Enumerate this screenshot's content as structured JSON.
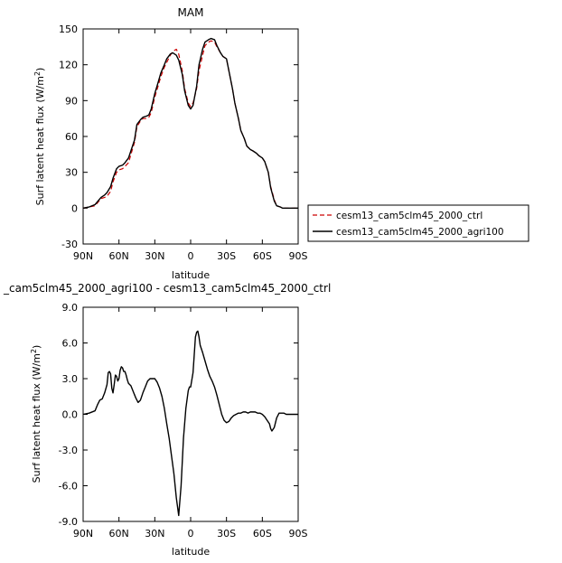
{
  "chart_data": [
    {
      "type": "line",
      "title": "MAM",
      "xlabel": "latitude",
      "ylabel": "Surf latent heat flux (W/m",
      "ylabel_sup": "2",
      "ylabel_close": ")",
      "xlim": [
        90,
        -90
      ],
      "ylim": [
        -30,
        150
      ],
      "xticks": [
        90,
        60,
        30,
        0,
        -30,
        -60,
        -90
      ],
      "xtick_labels": [
        "90N",
        "60N",
        "30N",
        "0",
        "30S",
        "60S",
        "90S"
      ],
      "yticks": [
        -30,
        0,
        30,
        60,
        90,
        120,
        150
      ],
      "ytick_labels": [
        "-30",
        "0",
        "30",
        "60",
        "90",
        "120",
        "150"
      ],
      "legend": {
        "placement": "right"
      },
      "series": [
        {
          "name": "cesm13_cam5clm45_2000_ctrl",
          "color": "#cc0000",
          "dash": true,
          "x": [
            90,
            85,
            80,
            75,
            72,
            70,
            67,
            65,
            62,
            60,
            57,
            55,
            52,
            50,
            47,
            45,
            42,
            40,
            37,
            35,
            33,
            30,
            27,
            25,
            22,
            20,
            17,
            15,
            12,
            10,
            7,
            5,
            2,
            0,
            -2,
            -5,
            -7,
            -10,
            -12,
            -15,
            -17,
            -20,
            -22,
            -25,
            -27,
            -30,
            -32,
            -35,
            -37,
            -40,
            -42,
            -45,
            -47,
            -50,
            -52,
            -55,
            -57,
            -60,
            -62,
            -65,
            -67,
            -70,
            -72,
            -75,
            -77,
            -80,
            -82,
            -85,
            -90
          ],
          "y": [
            0,
            1,
            2,
            8,
            9,
            10,
            14,
            22,
            30,
            32,
            33,
            35,
            38,
            45,
            55,
            68,
            73,
            75,
            75,
            76,
            80,
            93,
            103,
            110,
            118,
            122,
            128,
            131,
            133,
            129,
            115,
            100,
            88,
            85,
            88,
            100,
            115,
            128,
            136,
            139,
            140,
            139,
            135,
            130,
            127,
            125,
            115,
            100,
            88,
            75,
            65,
            58,
            52,
            49,
            48,
            46,
            44,
            42,
            39,
            30,
            18,
            7,
            2,
            1,
            0,
            0,
            0,
            0,
            0
          ]
        },
        {
          "name": "cesm13_cam5clm45_2000_agri100",
          "color": "#000000",
          "dash": false,
          "x": [
            90,
            85,
            80,
            75,
            72,
            70,
            67,
            65,
            62,
            60,
            57,
            55,
            52,
            50,
            47,
            45,
            42,
            40,
            37,
            35,
            33,
            30,
            27,
            25,
            22,
            20,
            17,
            15,
            12,
            10,
            7,
            5,
            2,
            0,
            -2,
            -5,
            -7,
            -10,
            -12,
            -15,
            -17,
            -20,
            -22,
            -25,
            -27,
            -30,
            -32,
            -35,
            -37,
            -40,
            -42,
            -45,
            -47,
            -50,
            -52,
            -55,
            -57,
            -60,
            -62,
            -65,
            -67,
            -70,
            -72,
            -75,
            -77,
            -80,
            -82,
            -85,
            -90
          ],
          "y": [
            0,
            1,
            3,
            9,
            11,
            13,
            18,
            25,
            33,
            35,
            36,
            38,
            42,
            48,
            57,
            70,
            74,
            76,
            77,
            78,
            83,
            96,
            106,
            113,
            120,
            125,
            129,
            130,
            128,
            124,
            112,
            98,
            86,
            83,
            86,
            102,
            120,
            133,
            139,
            141,
            142,
            141,
            136,
            130,
            127,
            125,
            115,
            100,
            88,
            75,
            65,
            58,
            52,
            49,
            48,
            46,
            44,
            42,
            39,
            30,
            17,
            6,
            2,
            1,
            0,
            0,
            0,
            0,
            0
          ]
        }
      ]
    },
    {
      "type": "line",
      "title": "_cam5clm45_2000_agri100 - cesm13_cam5clm45_2000_ctrl",
      "xlabel": "latitude",
      "ylabel": "Surf latent heat flux (W/m",
      "ylabel_sup": "2",
      "ylabel_close": ")",
      "xlim": [
        90,
        -90
      ],
      "ylim": [
        -9,
        9
      ],
      "xticks": [
        90,
        60,
        30,
        0,
        -30,
        -60,
        -90
      ],
      "xtick_labels": [
        "90N",
        "60N",
        "30N",
        "0",
        "30S",
        "60S",
        "90S"
      ],
      "yticks": [
        -9,
        -6,
        -3,
        0,
        3,
        6,
        9
      ],
      "ytick_labels": [
        "-9.0",
        "-6.0",
        "-3.0",
        "0.0",
        "3.0",
        "6.0",
        "9.0"
      ],
      "series": [
        {
          "name": "",
          "color": "#000000",
          "dash": false,
          "x": [
            90,
            85,
            80,
            78,
            76,
            74,
            72,
            70,
            69,
            68,
            67,
            66,
            65,
            64,
            63,
            62,
            61,
            60,
            59,
            58,
            57,
            56,
            55,
            54,
            53,
            52,
            50,
            48,
            46,
            44,
            42,
            40,
            38,
            36,
            34,
            32,
            30,
            28,
            26,
            24,
            22,
            20,
            18,
            16,
            14,
            12,
            10,
            8,
            6,
            4,
            2,
            1,
            0,
            -2,
            -3,
            -4,
            -5,
            -6,
            -7,
            -8,
            -10,
            -12,
            -14,
            -16,
            -18,
            -20,
            -22,
            -24,
            -26,
            -28,
            -30,
            -32,
            -34,
            -36,
            -38,
            -40,
            -42,
            -44,
            -46,
            -48,
            -50,
            -52,
            -54,
            -56,
            -58,
            -60,
            -62,
            -64,
            -66,
            -67,
            -68,
            -70,
            -72,
            -74,
            -76,
            -78,
            -80,
            -85,
            -90
          ],
          "y": [
            0,
            0.1,
            0.3,
            0.8,
            1.2,
            1.3,
            1.8,
            2.5,
            3.5,
            3.6,
            3.4,
            2.2,
            1.8,
            2.5,
            3.3,
            3.2,
            2.8,
            3.0,
            3.7,
            4.0,
            3.9,
            3.6,
            3.6,
            3.3,
            2.9,
            2.6,
            2.4,
            1.9,
            1.4,
            1.0,
            1.2,
            1.8,
            2.3,
            2.8,
            3.0,
            3.0,
            3.0,
            2.7,
            2.2,
            1.5,
            0.5,
            -0.8,
            -2.0,
            -3.5,
            -5.0,
            -7.0,
            -8.5,
            -6.0,
            -2.0,
            0.5,
            2.0,
            2.3,
            2.3,
            3.5,
            5.0,
            6.5,
            6.9,
            7.0,
            6.5,
            5.8,
            5.2,
            4.5,
            3.8,
            3.2,
            2.8,
            2.3,
            1.6,
            0.8,
            0.0,
            -0.5,
            -0.7,
            -0.6,
            -0.3,
            -0.1,
            0.0,
            0.1,
            0.1,
            0.2,
            0.2,
            0.1,
            0.2,
            0.2,
            0.2,
            0.1,
            0.1,
            0.0,
            -0.2,
            -0.5,
            -0.8,
            -1.2,
            -1.4,
            -1.1,
            -0.3,
            0.1,
            0.1,
            0.1,
            0.0,
            0.0,
            0.0
          ]
        }
      ]
    }
  ]
}
